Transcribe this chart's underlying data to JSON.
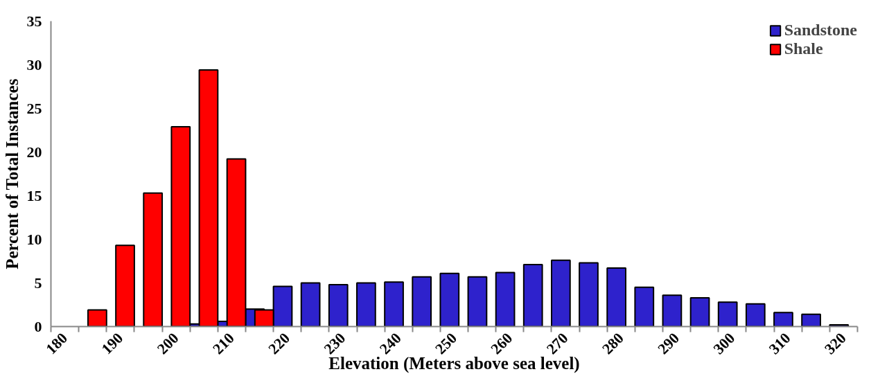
{
  "chart_data": {
    "type": "bar",
    "xlabel": "Elevation (Meters above sea level)",
    "ylabel": "Percent of Total Instances",
    "categories": [
      "180",
      null,
      "190",
      null,
      "200",
      null,
      "210",
      null,
      "220",
      null,
      "230",
      null,
      "240",
      null,
      "250",
      null,
      "260",
      null,
      "270",
      null,
      "280",
      null,
      "290",
      null,
      "300",
      null,
      "310",
      null,
      "320"
    ],
    "series": [
      {
        "name": "Sandstone",
        "color": "#2e22cc",
        "values": [
          null,
          null,
          null,
          null,
          null,
          0.3,
          0.6,
          2.0,
          4.6,
          5.0,
          4.8,
          5.0,
          5.1,
          5.7,
          6.1,
          5.7,
          6.2,
          7.1,
          7.6,
          7.3,
          6.7,
          4.5,
          3.6,
          3.3,
          2.8,
          2.6,
          1.6,
          1.4,
          0.2
        ]
      },
      {
        "name": "Shale",
        "color": "#ff0000",
        "values": [
          null,
          1.9,
          9.3,
          15.3,
          22.9,
          29.4,
          19.2,
          1.9,
          null,
          null,
          null,
          null,
          null,
          null,
          null,
          null,
          null,
          null,
          null,
          null,
          null,
          null,
          null,
          null,
          null,
          null,
          null,
          null,
          null
        ]
      }
    ],
    "ylim": [
      0,
      35
    ],
    "yticks": [
      0,
      5,
      10,
      15,
      20,
      25,
      30,
      35
    ],
    "grid": false,
    "legend": "top right"
  }
}
